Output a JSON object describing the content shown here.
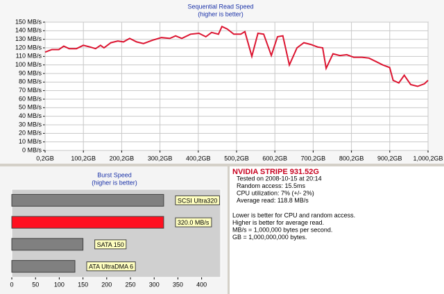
{
  "chart_data": [
    {
      "type": "line",
      "title": "Sequential Read Speed",
      "subtitle": "(higher is better)",
      "x": [
        0.2,
        18,
        36,
        49,
        63,
        82,
        100,
        118,
        132,
        145,
        154,
        172,
        190,
        205,
        221,
        239,
        257,
        281,
        304,
        326,
        341,
        357,
        380,
        402,
        420,
        435,
        453,
        462,
        476,
        493,
        511,
        522,
        540,
        556,
        571,
        591,
        607,
        621,
        638,
        658,
        676,
        694,
        712,
        725,
        734,
        752,
        770,
        788,
        806,
        828,
        846,
        864,
        882,
        900,
        909,
        924,
        938,
        955,
        973,
        991,
        1000
      ],
      "values": [
        115,
        118,
        118,
        122,
        119,
        119,
        123,
        121,
        119,
        123,
        120,
        126,
        128,
        127,
        131,
        127,
        125,
        129,
        132,
        131,
        134,
        131,
        136,
        137,
        133,
        138,
        136,
        145,
        142,
        136,
        136,
        139,
        110,
        137,
        136,
        111,
        133,
        134,
        100,
        120,
        126,
        124,
        121,
        120,
        96,
        113,
        111,
        112,
        109,
        109,
        108,
        104,
        100,
        97,
        82,
        79,
        88,
        77,
        75,
        78,
        82
      ],
      "color": "#dc1430",
      "grid": true,
      "xlim": [
        0.2,
        1000.2
      ],
      "xticks": [
        {
          "value": 0.2,
          "label": "0,2GB"
        },
        {
          "value": 100.2,
          "label": "100,2GB"
        },
        {
          "value": 200.2,
          "label": "200,2GB"
        },
        {
          "value": 300.2,
          "label": "300,2GB"
        },
        {
          "value": 400.2,
          "label": "400,2GB"
        },
        {
          "value": 500.2,
          "label": "500,2GB"
        },
        {
          "value": 600.2,
          "label": "600,2GB"
        },
        {
          "value": 700.2,
          "label": "700,2GB"
        },
        {
          "value": 800.2,
          "label": "800,2GB"
        },
        {
          "value": 900.2,
          "label": "900,2GB"
        },
        {
          "value": 1000.2,
          "label": "1,000,2GB"
        }
      ],
      "ylim": [
        0,
        150
      ],
      "yticks": [
        {
          "value": 0,
          "label": "0 MB/s"
        },
        {
          "value": 10,
          "label": "10 MB/s"
        },
        {
          "value": 20,
          "label": "20 MB/s"
        },
        {
          "value": 30,
          "label": "30 MB/s"
        },
        {
          "value": 40,
          "label": "40 MB/s"
        },
        {
          "value": 50,
          "label": "50 MB/s"
        },
        {
          "value": 60,
          "label": "60 MB/s"
        },
        {
          "value": 70,
          "label": "70 MB/s"
        },
        {
          "value": 80,
          "label": "80 MB/s"
        },
        {
          "value": 90,
          "label": "90 MB/s"
        },
        {
          "value": 100,
          "label": "100 MB/s"
        },
        {
          "value": 110,
          "label": "110 MB/s"
        },
        {
          "value": 120,
          "label": "120 MB/s"
        },
        {
          "value": 130,
          "label": "130 MB/s"
        },
        {
          "value": 140,
          "label": "140 MB/s"
        },
        {
          "value": 150,
          "label": "150 MB/s"
        }
      ]
    },
    {
      "type": "hbar",
      "title": "Burst Speed",
      "subtitle": "(higher is better)",
      "categories": [
        "SCSI Ultra320",
        null,
        "SATA 150",
        "ATA UltraDMA 6"
      ],
      "values": [
        320,
        320,
        150,
        133
      ],
      "value_labels": [
        null,
        "320.0 MB/s",
        null,
        null
      ],
      "colors": [
        "#808080",
        "#ff1020",
        "#808080",
        "#808080"
      ],
      "xlim": [
        0,
        440
      ],
      "xticks": [
        0,
        50,
        100,
        150,
        200,
        250,
        300,
        350,
        400
      ]
    }
  ],
  "info": {
    "title": "NVIDIA STRIPE 931.52G",
    "stats": [
      "Tested on 2008-10-15 at 20:14",
      "Random access: 15.5ms",
      "CPU utilization: 7% (+/- 2%)",
      "Average read: 118.8 MB/s"
    ],
    "notes": [
      "Lower is better for CPU and random access.",
      "Higher is better for average read.",
      "MB/s = 1,000,000 bytes per second.",
      "GB = 1,000,000,000 bytes."
    ]
  }
}
